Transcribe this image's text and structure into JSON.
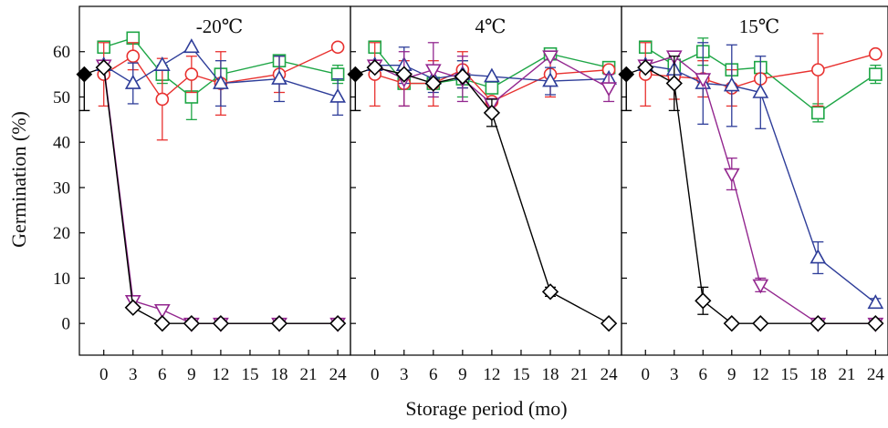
{
  "chart_data": {
    "type": "line",
    "xlabel": "Storage period (mo)",
    "ylabel": "Germination (%)",
    "ylim": [
      -7,
      70
    ],
    "xlim": [
      -2.5,
      25.3
    ],
    "yticks": [
      0,
      10,
      20,
      30,
      40,
      50,
      60
    ],
    "xticks": [
      0,
      3,
      6,
      9,
      12,
      15,
      18,
      21,
      24
    ],
    "grid": false,
    "initial_point": {
      "x": -2,
      "y": 55,
      "err": 8,
      "marker": "filled-diamond",
      "color": "#000000"
    },
    "series_styles": [
      {
        "key": "circle",
        "marker": "circle",
        "color": "#e8312f"
      },
      {
        "key": "square",
        "marker": "square",
        "color": "#1ea646"
      },
      {
        "key": "triangle-up",
        "marker": "triangle-up",
        "color": "#2e3d99"
      },
      {
        "key": "triangle-down",
        "marker": "triangle-down",
        "color": "#93278f"
      },
      {
        "key": "diamond",
        "marker": "diamond",
        "color": "#000000"
      }
    ],
    "panels": [
      {
        "title": "-20℃",
        "series": [
          {
            "style": "square",
            "points": [
              [
                0,
                61,
                0
              ],
              [
                3,
                63,
                0
              ],
              [
                6,
                55,
                2
              ],
              [
                9,
                50,
                5
              ],
              [
                12,
                55,
                0
              ],
              [
                18,
                58,
                0
              ],
              [
                24,
                55,
                2
              ]
            ]
          },
          {
            "style": "circle",
            "points": [
              [
                0,
                55,
                7
              ],
              [
                3,
                59,
                3
              ],
              [
                6,
                49.5,
                9
              ],
              [
                9,
                55,
                4
              ],
              [
                12,
                53,
                7
              ],
              [
                18,
                55,
                4
              ],
              [
                24,
                61,
                0
              ]
            ]
          },
          {
            "style": "triangle-up",
            "points": [
              [
                0,
                57,
                0
              ],
              [
                3,
                53,
                4.5
              ],
              [
                6,
                57,
                0
              ],
              [
                9,
                61,
                0
              ],
              [
                12,
                53,
                5
              ],
              [
                18,
                54,
                5
              ],
              [
                24,
                50,
                4
              ]
            ]
          },
          {
            "style": "triangle-down",
            "points": [
              [
                0,
                57,
                0
              ],
              [
                3,
                5,
                0
              ],
              [
                6,
                3,
                0
              ],
              [
                9,
                0,
                0
              ],
              [
                12,
                0,
                0
              ],
              [
                18,
                0,
                0
              ],
              [
                24,
                0,
                0
              ]
            ]
          },
          {
            "style": "diamond",
            "points": [
              [
                0,
                56.5,
                0
              ],
              [
                3,
                3.5,
                0
              ],
              [
                6,
                0,
                0
              ],
              [
                9,
                0,
                0
              ],
              [
                12,
                0,
                0
              ],
              [
                18,
                0,
                0
              ],
              [
                24,
                0,
                0
              ]
            ]
          }
        ]
      },
      {
        "title": "4℃",
        "series": [
          {
            "style": "square",
            "points": [
              [
                0,
                61,
                0
              ],
              [
                3,
                53,
                0
              ],
              [
                6,
                53,
                0
              ],
              [
                9,
                54,
                4
              ],
              [
                12,
                52,
                0
              ],
              [
                18,
                59.5,
                0
              ],
              [
                24,
                56.5,
                0
              ]
            ]
          },
          {
            "style": "circle",
            "points": [
              [
                0,
                55,
                7
              ],
              [
                3,
                53,
                5
              ],
              [
                6,
                53,
                5
              ],
              [
                9,
                56,
                4
              ],
              [
                12,
                49,
                0
              ],
              [
                18,
                55,
                5
              ],
              [
                24,
                56,
                0
              ]
            ]
          },
          {
            "style": "triangle-up",
            "points": [
              [
                0,
                57,
                0
              ],
              [
                3,
                57,
                4
              ],
              [
                6,
                54,
                3
              ],
              [
                9,
                55,
                3
              ],
              [
                12,
                54.5,
                0
              ],
              [
                18,
                53.5,
                3
              ],
              [
                24,
                54,
                0
              ]
            ]
          },
          {
            "style": "triangle-down",
            "points": [
              [
                0,
                57,
                0
              ],
              [
                3,
                54,
                6
              ],
              [
                6,
                56,
                6
              ],
              [
                9,
                54,
                5
              ],
              [
                12,
                48.5,
                0
              ],
              [
                18,
                59,
                0
              ],
              [
                24,
                52,
                3
              ]
            ]
          },
          {
            "style": "diamond",
            "points": [
              [
                0,
                56.5,
                0
              ],
              [
                3,
                55,
                0
              ],
              [
                6,
                53,
                0
              ],
              [
                9,
                54.5,
                0
              ],
              [
                12,
                46.5,
                3
              ],
              [
                18,
                7,
                1
              ],
              [
                24,
                0,
                0
              ]
            ]
          }
        ]
      },
      {
        "title": "15℃",
        "series": [
          {
            "style": "square",
            "points": [
              [
                0,
                61,
                0
              ],
              [
                3,
                57,
                2
              ],
              [
                6,
                60,
                3
              ],
              [
                9,
                56,
                0
              ],
              [
                12,
                56.5,
                0
              ],
              [
                18,
                46.5,
                2
              ],
              [
                24,
                55,
                2
              ]
            ]
          },
          {
            "style": "circle",
            "points": [
              [
                0,
                55,
                7
              ],
              [
                3,
                54.5,
                5
              ],
              [
                6,
                54,
                4
              ],
              [
                9,
                52,
                4
              ],
              [
                12,
                54,
                0
              ],
              [
                18,
                56,
                8
              ],
              [
                24,
                59.5,
                0
              ]
            ]
          },
          {
            "style": "triangle-up",
            "points": [
              [
                0,
                57,
                0
              ],
              [
                3,
                56,
                0
              ],
              [
                6,
                53,
                9
              ],
              [
                9,
                52.5,
                9
              ],
              [
                12,
                51,
                8
              ],
              [
                18,
                14.5,
                3.5
              ],
              [
                24,
                4.5,
                1
              ]
            ]
          },
          {
            "style": "triangle-down",
            "points": [
              [
                0,
                57,
                0
              ],
              [
                3,
                59,
                0
              ],
              [
                6,
                54,
                0
              ],
              [
                9,
                33,
                3.5
              ],
              [
                12,
                8.5,
                1.5
              ],
              [
                18,
                0,
                0
              ],
              [
                24,
                0,
                0
              ]
            ]
          },
          {
            "style": "diamond",
            "points": [
              [
                0,
                56.5,
                0
              ],
              [
                3,
                53,
                6
              ],
              [
                6,
                5,
                3
              ],
              [
                9,
                0,
                0
              ],
              [
                12,
                0,
                0
              ],
              [
                18,
                0,
                0
              ],
              [
                24,
                0,
                0
              ]
            ]
          }
        ]
      }
    ]
  }
}
